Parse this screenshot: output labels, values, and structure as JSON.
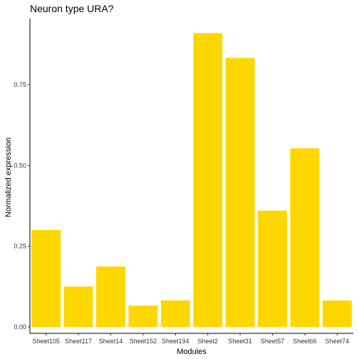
{
  "chart_data": {
    "type": "bar",
    "title": "Neuron type URA?",
    "xlabel": "Modules",
    "ylabel": "Normalized expression",
    "categories": [
      "Sheet105",
      "Sheet117",
      "Sheet14",
      "Sheet152",
      "Sheet194",
      "Sheet2",
      "Sheet31",
      "Sheet57",
      "Sheet66",
      "Sheet74"
    ],
    "values": [
      0.3,
      0.125,
      0.187,
      0.066,
      0.082,
      0.91,
      0.833,
      0.36,
      0.553,
      0.082
    ],
    "yticks": [
      0.0,
      0.25,
      0.5,
      0.75
    ],
    "ytick_labels": [
      "0.00",
      "0.25",
      "0.50",
      "0.75"
    ],
    "ylim": [
      -0.02,
      0.955
    ],
    "bar_color": "#FFD700",
    "axis_color": "#000000",
    "grid": false,
    "legend": "none"
  }
}
